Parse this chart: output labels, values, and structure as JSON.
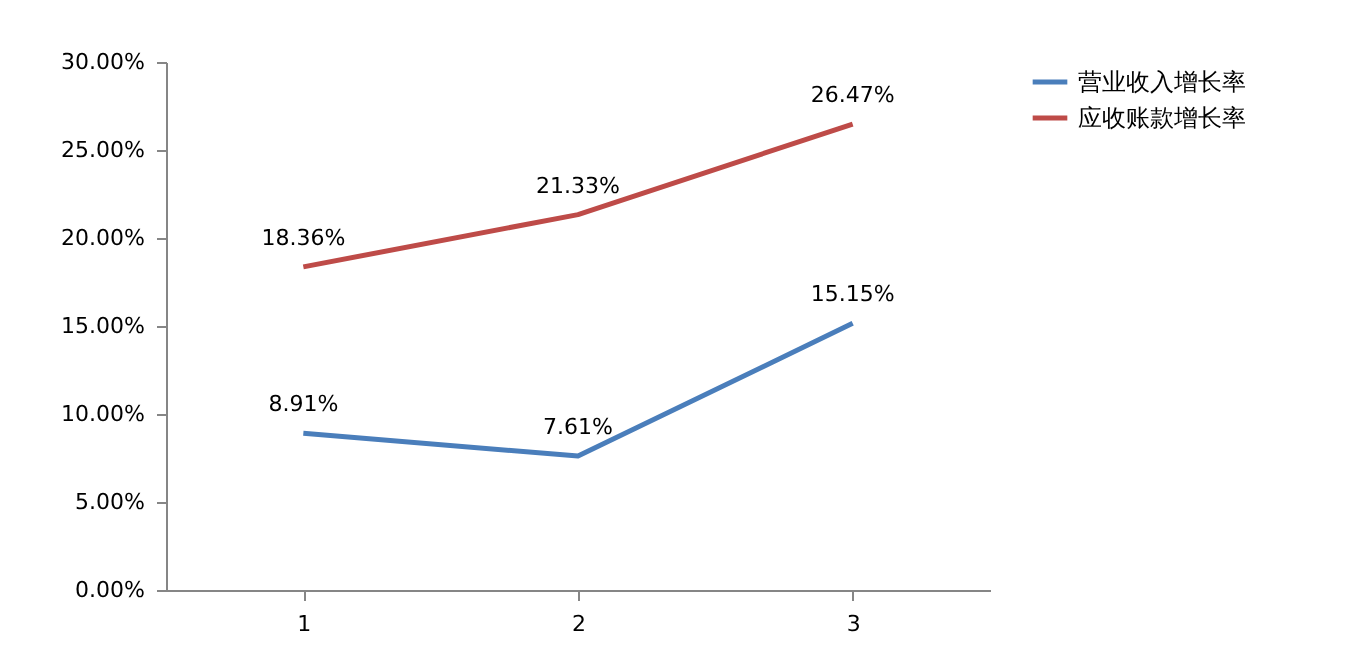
{
  "chart_data": {
    "type": "line",
    "categories": [
      "1",
      "2",
      "3"
    ],
    "ylim": [
      0,
      30
    ],
    "yticks": [
      {
        "value": 0,
        "label": "0.00%"
      },
      {
        "value": 5,
        "label": "5.00%"
      },
      {
        "value": 10,
        "label": "10.00%"
      },
      {
        "value": 15,
        "label": "15.00%"
      },
      {
        "value": 20,
        "label": "20.00%"
      },
      {
        "value": 25,
        "label": "25.00%"
      },
      {
        "value": 30,
        "label": "30.00%"
      }
    ],
    "legend": "right",
    "marker": "none",
    "series": [
      {
        "name": "营业收入增长率",
        "color": "#4a7ebb",
        "values": [
          8.91,
          7.61,
          15.15
        ],
        "value_labels": [
          "8.91%",
          "7.61%",
          "15.15%"
        ]
      },
      {
        "name": "应收账款增长率",
        "color": "#be4b48",
        "values": [
          18.36,
          21.33,
          26.47
        ],
        "value_labels": [
          "18.36%",
          "21.33%",
          "26.47%"
        ]
      }
    ]
  }
}
